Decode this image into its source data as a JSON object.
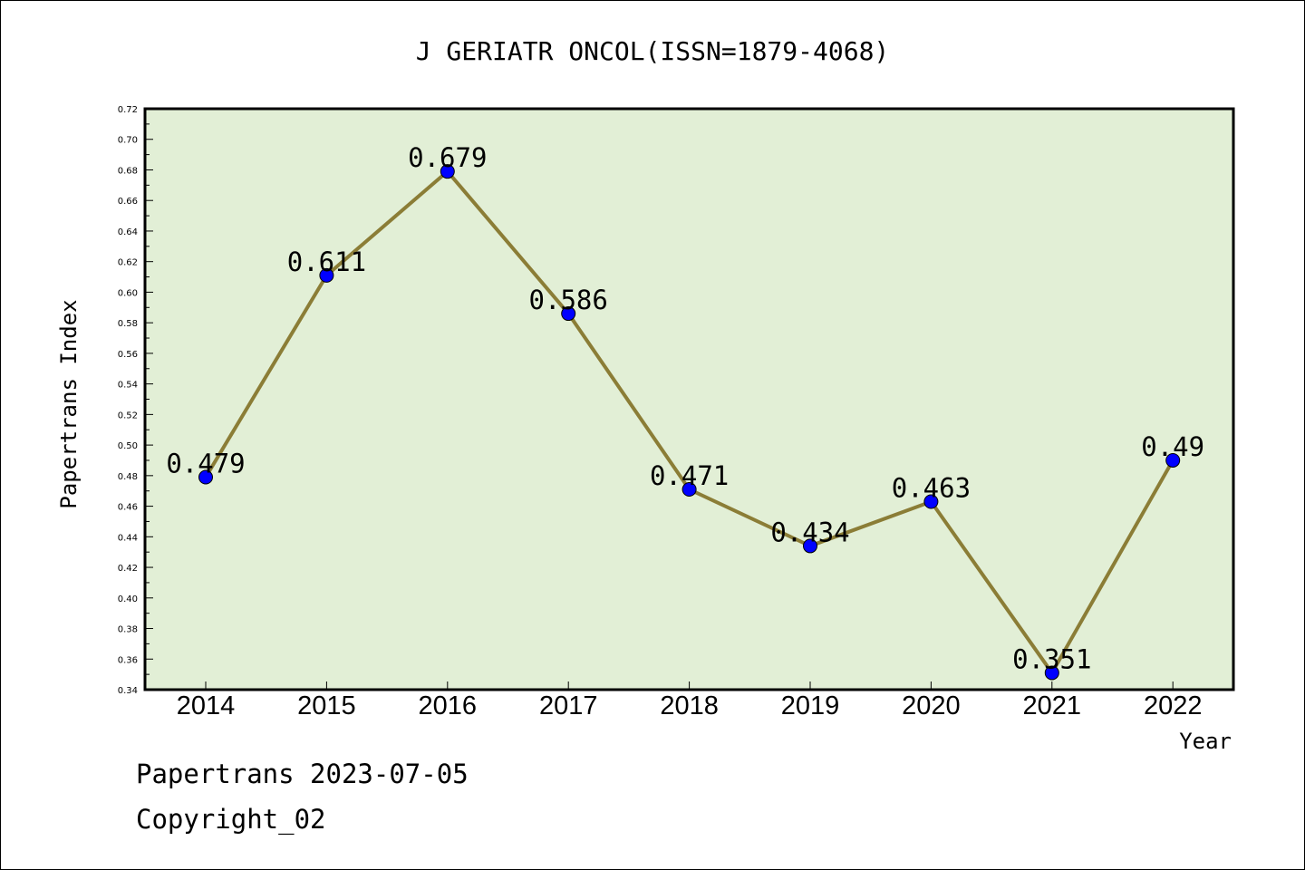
{
  "chart_data": {
    "type": "line",
    "title": "J GERIATR ONCOL(ISSN=1879-4068)",
    "xlabel": "Year",
    "ylabel": "Papertrans Index",
    "categories": [
      "2014",
      "2015",
      "2016",
      "2017",
      "2018",
      "2019",
      "2020",
      "2021",
      "2022"
    ],
    "values": [
      0.479,
      0.611,
      0.679,
      0.586,
      0.471,
      0.434,
      0.463,
      0.351,
      0.49
    ],
    "data_labels": [
      "0.479",
      "0.611",
      "0.679",
      "0.586",
      "0.471",
      "0.434",
      "0.463",
      "0.351",
      "0.49"
    ],
    "ylim": [
      0.34,
      0.72
    ],
    "y_tick_step": 0.02,
    "y_tick_labels": [
      "0.34",
      "0.36",
      "0.38",
      "0.40",
      "0.42",
      "0.44",
      "0.46",
      "0.48",
      "0.50",
      "0.52",
      "0.54",
      "0.56",
      "0.58",
      "0.60",
      "0.62",
      "0.64",
      "0.66",
      "0.68",
      "0.70",
      "0.72"
    ],
    "grid": false,
    "legend": "none",
    "colors": {
      "plot_background": "#e2efd6",
      "line": "#8b7d36",
      "marker": "#0000ff"
    }
  },
  "footer": {
    "line1": "Papertrans 2023-07-05",
    "line2": "Copyright_02"
  }
}
